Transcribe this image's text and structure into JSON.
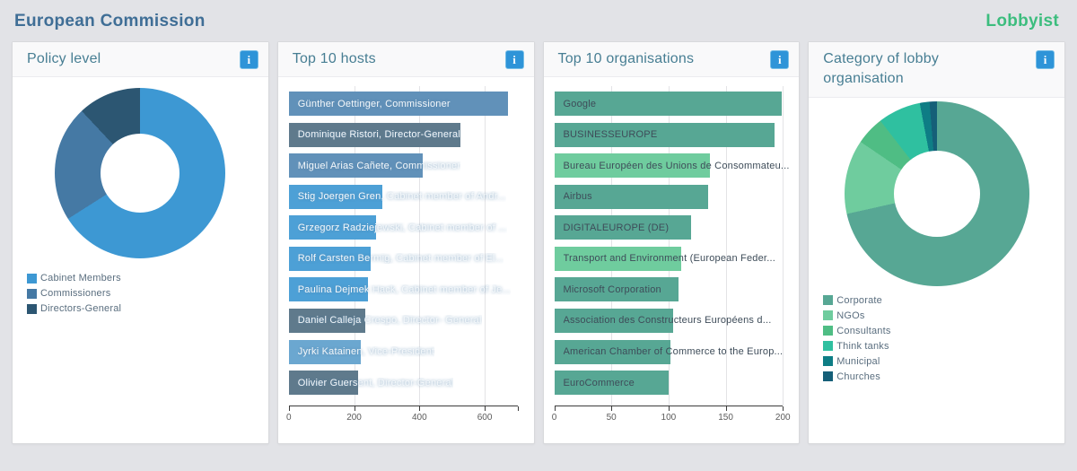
{
  "header": {
    "title": "European Commission",
    "right_label": "Lobbyist"
  },
  "colors": {
    "page_background": "#e2e3e7",
    "header_title": "#3f6e96",
    "accent_green": "#3cbd7e",
    "card_title": "#477e93",
    "info_button": "#2e94d8"
  },
  "cards": [
    {
      "title": "Policy level",
      "info_label": "i"
    },
    {
      "title": "Top 10 hosts",
      "info_label": "i"
    },
    {
      "title": "Top 10 organisations",
      "info_label": "i"
    },
    {
      "title": "Category of lobby organisation",
      "info_label": "i"
    }
  ],
  "chart_data": [
    {
      "type": "pie",
      "title": "Policy level",
      "donut": true,
      "labels": [
        "Cabinet Members",
        "Commissioners",
        "Directors-General"
      ],
      "values": [
        66,
        22,
        12
      ],
      "unit": "percent_of_ring_estimated",
      "colors": [
        "#3d98d3",
        "#4579a4",
        "#2c5672"
      ],
      "legend_position": "bottom-left"
    },
    {
      "type": "bar",
      "title": "Top 10 hosts",
      "orientation": "horizontal",
      "categories": [
        "Günther Oettinger, Commissioner",
        "Dominique Ristori, Director-General",
        "Miguel Arias Cañete, Commissioner",
        "Stig Joergen Gren, Cabinet member of Andr...",
        "Grzegorz Radziejewski, Cabinet member of ...",
        "Rolf Carsten Bermig, Cabinet member of El...",
        "Paulina Dejmek Hack, Cabinet member of Je...",
        "Daniel Calleja Crespo, Director- General",
        "Jyrki Katainen, Vice-President",
        "Olivier Guersent, Director-General"
      ],
      "values": [
        670,
        525,
        410,
        287,
        268,
        252,
        242,
        234,
        220,
        212
      ],
      "xlim": [
        0,
        700
      ],
      "xticks": [
        0,
        200,
        400,
        600
      ],
      "bar_colors": [
        "#6191b9",
        "#5f7a8c",
        "#6191b9",
        "#4da0d6",
        "#4da0d6",
        "#4da0d6",
        "#4da0d6",
        "#5f7a8c",
        "#6ba7d0",
        "#5f7a8c"
      ],
      "label_color": "#f4f8fb",
      "grid": true
    },
    {
      "type": "bar",
      "title": "Top 10 organisations",
      "orientation": "horizontal",
      "categories": [
        "Google",
        "BUSINESSEUROPE",
        "Bureau Européen des Unions de Consommateu...",
        "Airbus",
        "DIGITALEUROPE (DE)",
        "Transport and Environment (European Feder...",
        "Microsoft Corporation",
        "Association des Constructeurs Européens d...",
        "American Chamber of Commerce to the Europ...",
        "EuroCommerce"
      ],
      "values": [
        199,
        193,
        136,
        135,
        120,
        111,
        109,
        104,
        102,
        100
      ],
      "xlim": [
        0,
        200
      ],
      "xticks": [
        0,
        50,
        100,
        150,
        200
      ],
      "bar_colors": [
        "#57a794",
        "#57a794",
        "#6fcc9e",
        "#57a794",
        "#57a794",
        "#6fcc9e",
        "#57a794",
        "#57a794",
        "#57a794",
        "#57a794"
      ],
      "label_color": "#3e4c59",
      "grid": true
    },
    {
      "type": "pie",
      "title": "Category of lobby organisation",
      "donut": true,
      "labels": [
        "Corporate",
        "NGOs",
        "Consultants",
        "Think tanks",
        "Municipal",
        "Churches"
      ],
      "values": [
        71.5,
        13,
        5,
        7.5,
        1.7,
        1.3
      ],
      "unit": "percent_of_ring_estimated",
      "colors": [
        "#57a794",
        "#6fcc9e",
        "#4fbd84",
        "#2fc0a0",
        "#0e7d85",
        "#155f78"
      ],
      "legend_position": "bottom-left"
    }
  ]
}
